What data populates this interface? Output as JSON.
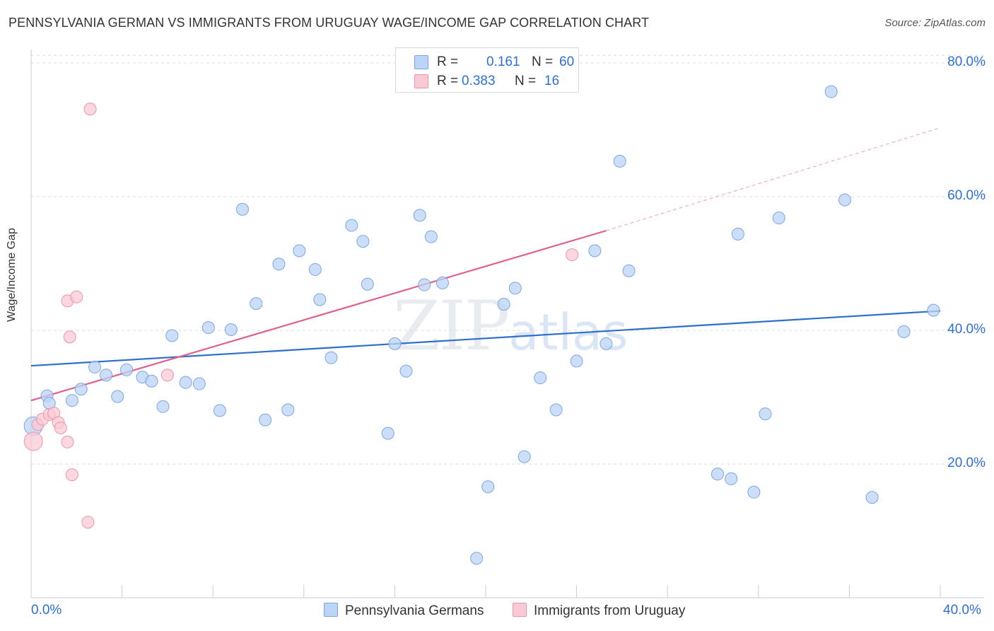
{
  "title": "PENNSYLVANIA GERMAN VS IMMIGRANTS FROM URUGUAY WAGE/INCOME GAP CORRELATION CHART",
  "source": "Source: ZipAtlas.com",
  "watermark": {
    "zip": "ZIP",
    "atlas": "atlas"
  },
  "legend": {
    "blue": {
      "r_label": "R =",
      "r_value": "0.161",
      "n_label": "N =",
      "n_value": "60"
    },
    "pink": {
      "r_label": "R =",
      "r_value": "0.383",
      "n_label": "N =",
      "n_value": "16"
    }
  },
  "colors": {
    "blue_fill": "#bcd4f6",
    "blue_stroke": "#7aa6e6",
    "blue_line": "#2f6fcc",
    "pink_fill": "#f9c9d6",
    "pink_stroke": "#ee93ad",
    "pink_line": "#e0608d",
    "grid": "#dddddd",
    "tick_text": "#2e6fd6"
  },
  "chart_data": {
    "type": "scatter",
    "title": "PENNSYLVANIA GERMAN VS IMMIGRANTS FROM URUGUAY WAGE/INCOME GAP CORRELATION CHART",
    "xlabel": "",
    "ylabel": "Wage/Income Gap",
    "xlim": [
      0,
      40
    ],
    "ylim": [
      0,
      82
    ],
    "x_tick_labels": [
      "0.0%",
      "40.0%"
    ],
    "y_tick_labels": [
      "20.0%",
      "40.0%",
      "60.0%",
      "80.0%"
    ],
    "y_ticks": [
      20,
      40,
      60,
      80
    ],
    "grid": true,
    "legend_position": "top-center",
    "series": [
      {
        "name": "Pennsylvania Germans",
        "r": 0.161,
        "n": 60,
        "trend": {
          "x": [
            0,
            40
          ],
          "y": [
            34.7,
            42.9
          ]
        },
        "points": [
          [
            0.1,
            25.7
          ],
          [
            0.7,
            30.2
          ],
          [
            0.8,
            29.1
          ],
          [
            1.8,
            29.5
          ],
          [
            2.2,
            31.2
          ],
          [
            2.8,
            34.5
          ],
          [
            3.3,
            33.3
          ],
          [
            3.8,
            30.1
          ],
          [
            4.2,
            34.1
          ],
          [
            4.9,
            33.0
          ],
          [
            5.3,
            32.4
          ],
          [
            5.8,
            28.6
          ],
          [
            6.2,
            39.2
          ],
          [
            6.8,
            32.2
          ],
          [
            7.4,
            32.0
          ],
          [
            7.8,
            40.4
          ],
          [
            8.3,
            28.0
          ],
          [
            8.8,
            40.1
          ],
          [
            9.3,
            58.1
          ],
          [
            9.9,
            44.0
          ],
          [
            10.3,
            26.6
          ],
          [
            10.9,
            49.9
          ],
          [
            11.3,
            28.1
          ],
          [
            11.8,
            51.9
          ],
          [
            12.5,
            49.1
          ],
          [
            12.7,
            44.6
          ],
          [
            13.2,
            35.9
          ],
          [
            14.1,
            55.7
          ],
          [
            14.6,
            53.3
          ],
          [
            14.8,
            46.9
          ],
          [
            15.7,
            24.6
          ],
          [
            16.0,
            38.0
          ],
          [
            16.5,
            33.9
          ],
          [
            17.1,
            57.2
          ],
          [
            17.3,
            46.8
          ],
          [
            17.6,
            54.0
          ],
          [
            18.1,
            47.1
          ],
          [
            19.6,
            5.9
          ],
          [
            20.1,
            16.6
          ],
          [
            20.8,
            43.9
          ],
          [
            21.3,
            46.3
          ],
          [
            21.7,
            21.1
          ],
          [
            22.4,
            32.9
          ],
          [
            23.1,
            28.1
          ],
          [
            24.0,
            35.4
          ],
          [
            24.8,
            51.9
          ],
          [
            25.3,
            38.0
          ],
          [
            25.9,
            65.3
          ],
          [
            26.3,
            48.9
          ],
          [
            30.2,
            18.5
          ],
          [
            30.8,
            17.8
          ],
          [
            31.1,
            54.4
          ],
          [
            31.8,
            15.8
          ],
          [
            32.3,
            27.5
          ],
          [
            32.9,
            56.8
          ],
          [
            35.2,
            75.7
          ],
          [
            35.8,
            59.5
          ],
          [
            37.0,
            15.0
          ],
          [
            38.4,
            39.8
          ],
          [
            39.7,
            43.0
          ]
        ]
      },
      {
        "name": "Immigrants from Uruguay",
        "r": 0.383,
        "n": 16,
        "trend": {
          "x": [
            0,
            25.3
          ],
          "y": [
            29.5,
            54.9
          ]
        },
        "trend_ext": {
          "x": [
            25.3,
            40
          ],
          "y": [
            54.9,
            70.3
          ]
        },
        "points": [
          [
            0.1,
            23.4
          ],
          [
            0.3,
            25.9
          ],
          [
            0.5,
            26.7
          ],
          [
            0.8,
            27.4
          ],
          [
            1.0,
            27.6
          ],
          [
            1.2,
            26.2
          ],
          [
            1.3,
            25.4
          ],
          [
            1.6,
            23.3
          ],
          [
            1.6,
            44.4
          ],
          [
            1.7,
            39.0
          ],
          [
            1.8,
            18.4
          ],
          [
            2.0,
            45.0
          ],
          [
            2.5,
            11.3
          ],
          [
            2.6,
            73.1
          ],
          [
            6.0,
            33.3
          ],
          [
            23.8,
            51.3
          ]
        ]
      }
    ]
  }
}
